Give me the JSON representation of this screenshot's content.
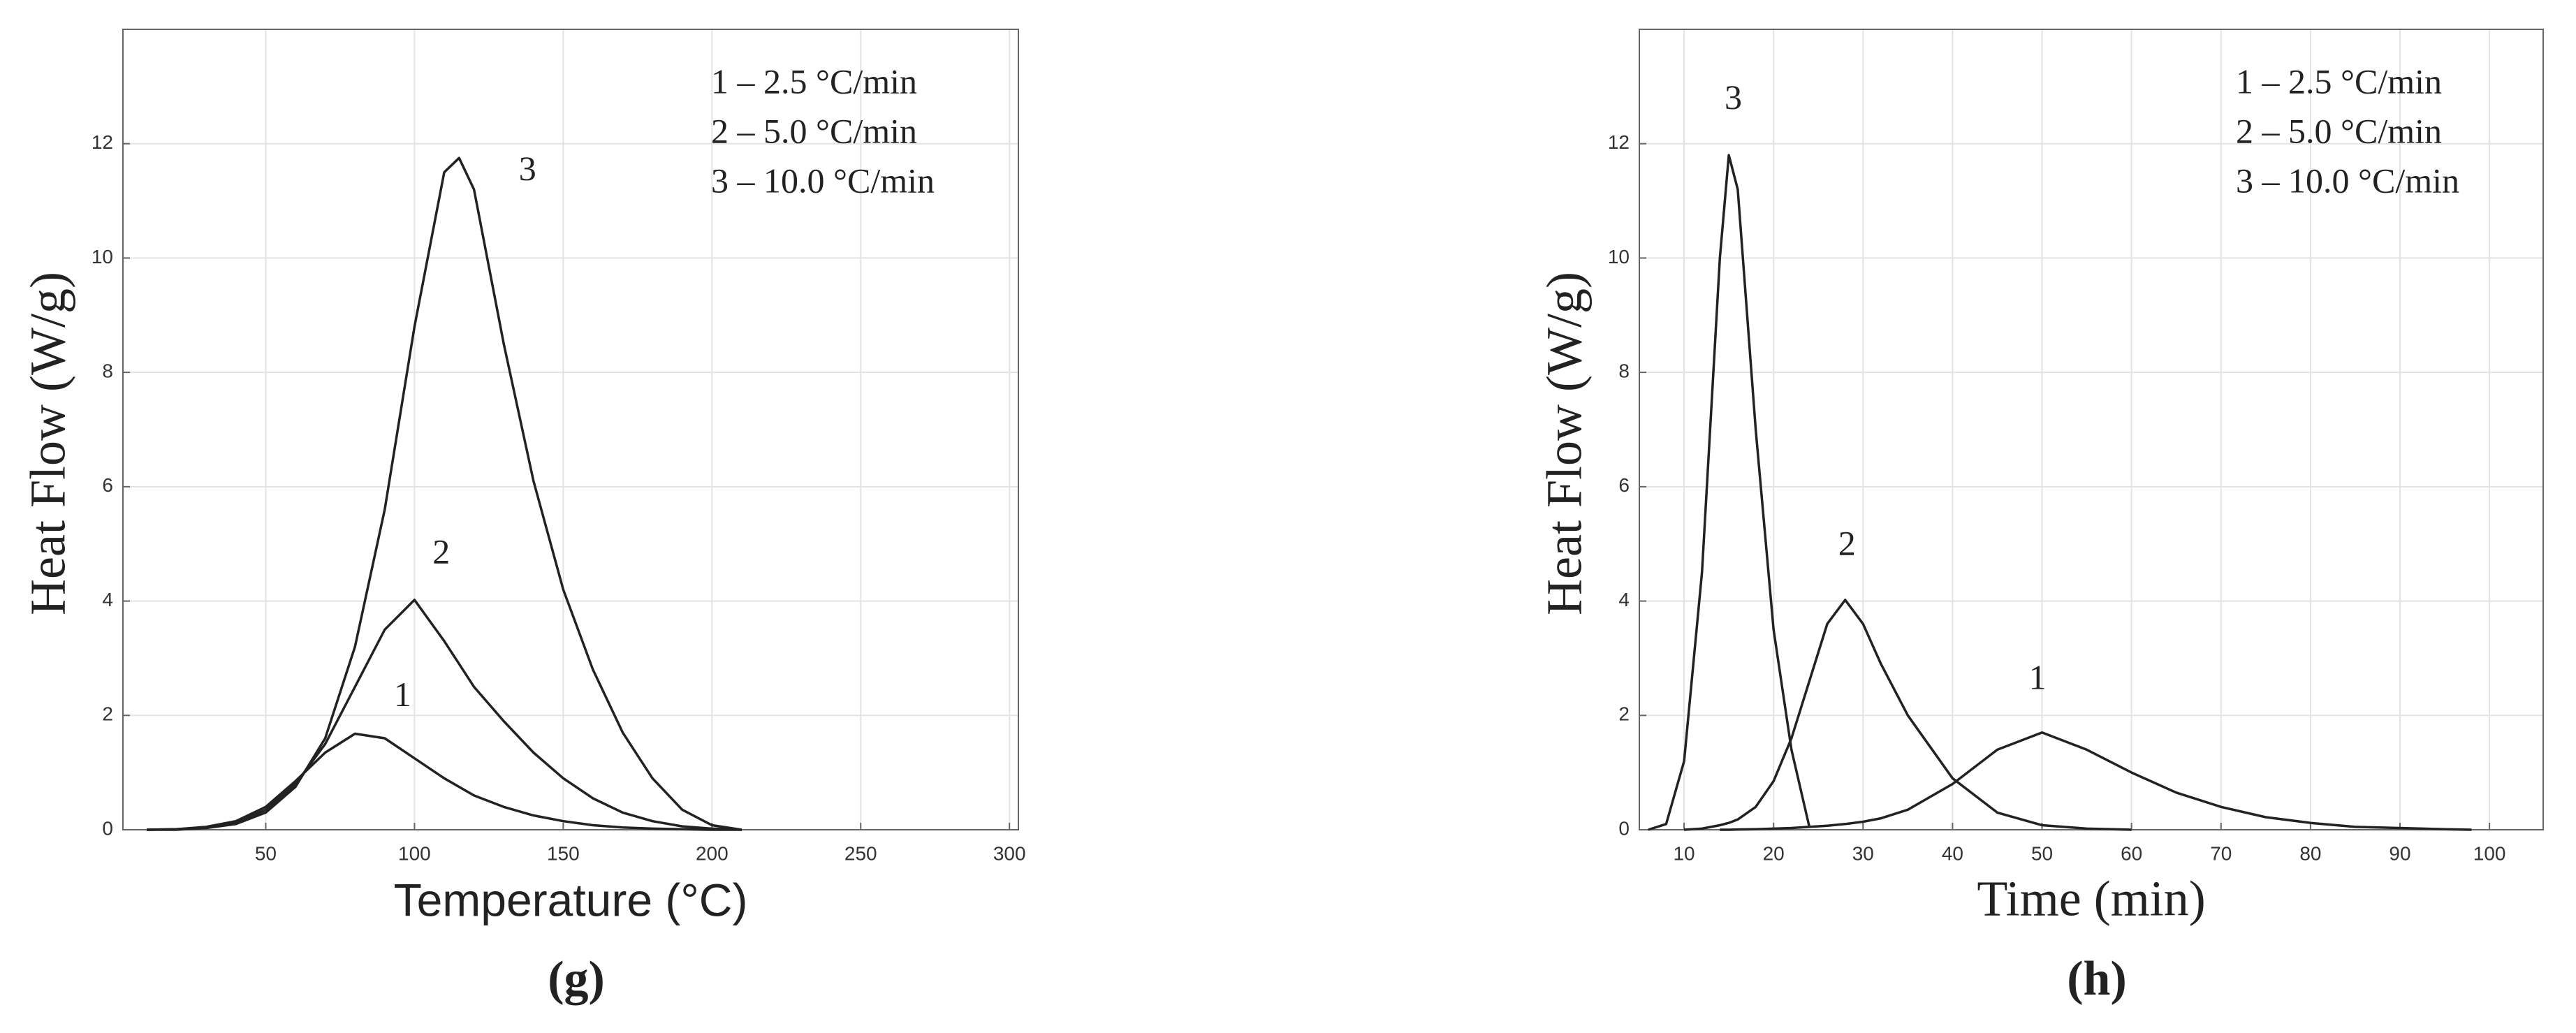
{
  "chart_data": [
    {
      "type": "line",
      "caption": "(g)",
      "xlabel": "Temperature (°C)",
      "ylabel": "Heat Flow (W/g)",
      "x": [
        10,
        20,
        30,
        40,
        50,
        60,
        70,
        80,
        90,
        100,
        110,
        115,
        120,
        130,
        140,
        150,
        160,
        170,
        180,
        190,
        200,
        210
      ],
      "series": [
        {
          "name": "1 – 2.5 °C/min",
          "color": "#222222",
          "values": [
            0,
            0.01,
            0.05,
            0.15,
            0.4,
            0.85,
            1.35,
            1.68,
            1.6,
            1.25,
            0.9,
            0.75,
            0.6,
            0.4,
            0.25,
            0.15,
            0.08,
            0.04,
            0.02,
            0.01,
            0,
            0
          ]
        },
        {
          "name": "2 – 5.0 °C/min",
          "color": "#222222",
          "values": [
            0,
            0.01,
            0.04,
            0.12,
            0.35,
            0.8,
            1.5,
            2.5,
            3.5,
            4.02,
            3.3,
            2.9,
            2.5,
            1.9,
            1.35,
            0.9,
            0.55,
            0.3,
            0.15,
            0.06,
            0.02,
            0
          ]
        },
        {
          "name": "3 – 10.0 °C/min",
          "color": "#222222",
          "values": [
            0,
            0,
            0.03,
            0.1,
            0.3,
            0.75,
            1.6,
            3.2,
            5.6,
            8.8,
            11.5,
            11.75,
            11.2,
            8.5,
            6.1,
            4.2,
            2.8,
            1.7,
            0.9,
            0.35,
            0.08,
            0
          ]
        }
      ],
      "annotations": [
        {
          "text": "1",
          "x": 96,
          "y": 2.3
        },
        {
          "text": "2",
          "x": 109,
          "y": 4.8
        },
        {
          "text": "3",
          "x": 138,
          "y": 11.5
        }
      ],
      "xlim": [
        2,
        303
      ],
      "xticks": [
        50,
        100,
        150,
        200,
        250,
        300
      ],
      "ylim": [
        0,
        14
      ],
      "yticks": [
        0,
        2,
        4,
        6,
        8,
        10,
        12
      ],
      "grid": true,
      "legend": "upper right"
    },
    {
      "type": "line",
      "caption": "(h)",
      "xlabel": "Time (min)",
      "ylabel": "Heat Flow (W/g)",
      "x": [
        6,
        8,
        10,
        12,
        14,
        15,
        16,
        18,
        20,
        22,
        24,
        26,
        28,
        30,
        32,
        35,
        40,
        45,
        50,
        55,
        60,
        65,
        70,
        75,
        80,
        85,
        90,
        95,
        98
      ],
      "series": [
        {
          "name": "1 – 2.5 °C/min",
          "color": "#222222",
          "values": [
            null,
            null,
            null,
            null,
            0,
            0,
            0.005,
            0.01,
            0.02,
            0.03,
            0.05,
            0.07,
            0.1,
            0.14,
            0.2,
            0.35,
            0.8,
            1.4,
            1.7,
            1.4,
            1.0,
            0.65,
            0.4,
            0.22,
            0.12,
            0.05,
            0.03,
            0.01,
            0
          ]
        },
        {
          "name": "2 – 5.0 °C/min",
          "color": "#222222",
          "values": [
            null,
            null,
            0,
            0.02,
            0.08,
            0.12,
            0.18,
            0.4,
            0.85,
            1.6,
            2.6,
            3.6,
            4.02,
            3.6,
            2.9,
            2.0,
            0.9,
            0.3,
            0.08,
            0.02,
            0,
            null,
            null,
            null,
            null,
            null,
            null,
            null,
            null
          ]
        },
        {
          "name": "3 – 10.0 °C/min",
          "color": "#222222",
          "values": [
            0,
            0.1,
            1.2,
            4.5,
            10,
            11.8,
            11.2,
            7,
            3.5,
            1.4,
            0.05,
            null,
            null,
            null,
            null,
            null,
            null,
            null,
            null,
            null,
            null,
            null,
            null,
            null,
            null,
            null,
            null,
            null,
            null
          ]
        }
      ],
      "annotations": [
        {
          "text": "3",
          "x": 15.5,
          "y": 12.75
        },
        {
          "text": "2",
          "x": 28.2,
          "y": 4.95
        },
        {
          "text": "1",
          "x": 49.5,
          "y": 2.6
        }
      ],
      "xlim": [
        5,
        106
      ],
      "xticks": [
        10,
        20,
        30,
        40,
        50,
        60,
        70,
        80,
        90,
        100
      ],
      "ylim": [
        0,
        14
      ],
      "yticks": [
        0,
        2,
        4,
        6,
        8,
        10,
        12
      ],
      "grid": true,
      "legend": "upper right"
    }
  ]
}
